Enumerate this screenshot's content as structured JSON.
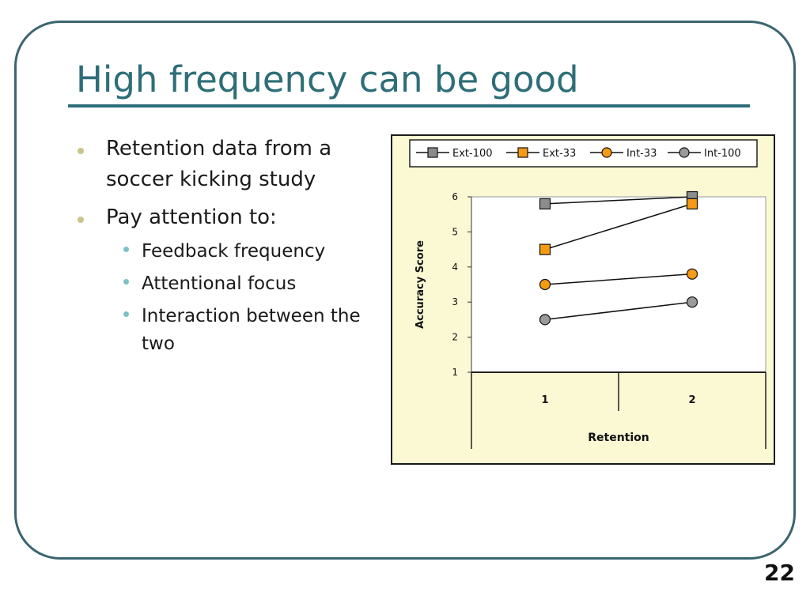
{
  "slide": {
    "title": "High frequency can be good",
    "number": "22"
  },
  "bullets": [
    {
      "text": "Retention data from a",
      "text2": "soccer kicking study"
    },
    {
      "text": "Pay attention to:"
    }
  ],
  "sub_bullets": [
    {
      "text": "Feedback frequency"
    },
    {
      "text": "Attentional focus"
    },
    {
      "text": "Interaction between the",
      "text2": "two"
    }
  ],
  "colors": {
    "title": "#2e6e78",
    "plot_bg": "#fbf8d4",
    "ext100": "#8c8c8c",
    "ext33": "#f59a14",
    "int33": "#f59a14",
    "int100": "#9a9a9a"
  },
  "chart_data": {
    "type": "line",
    "xlabel": "Retention",
    "ylabel": "Accuracy Score",
    "categories": [
      "1",
      "2"
    ],
    "ylim": [
      1,
      6
    ],
    "yticks": [
      1,
      2,
      3,
      4,
      5,
      6
    ],
    "legend_position": "top",
    "grid": false,
    "series": [
      {
        "name": "Ext-100",
        "marker": "square",
        "color": "#8c8c8c",
        "values": [
          5.8,
          6.0
        ]
      },
      {
        "name": "Ext-33",
        "marker": "square",
        "color": "#f59a14",
        "values": [
          4.5,
          5.8
        ]
      },
      {
        "name": "Int-33",
        "marker": "circle",
        "color": "#f59a14",
        "values": [
          3.5,
          3.8
        ]
      },
      {
        "name": "Int-100",
        "marker": "circle",
        "color": "#9a9a9a",
        "values": [
          2.5,
          3.0
        ]
      }
    ]
  }
}
